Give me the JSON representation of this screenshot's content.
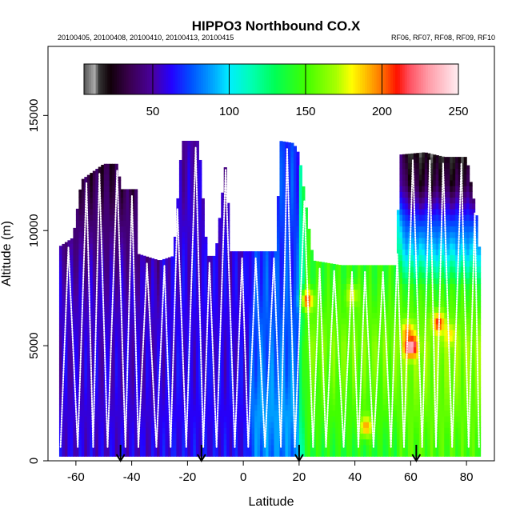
{
  "chart_data": {
    "type": "heatmap",
    "title": "HIPPO3 Northbound CO.X",
    "subtitle_left": "20100405, 20100408, 20100410, 20100413, 20100415",
    "subtitle_right": "RF06, RF07, RF08, RF09, RF10",
    "xlabel": "Latitude",
    "ylabel": "Altitude (m)",
    "xlim": [
      -70,
      90
    ],
    "ylim": [
      0,
      18000
    ],
    "x_ticks": [
      -60,
      -40,
      -20,
      0,
      20,
      40,
      60,
      80
    ],
    "y_ticks": [
      0,
      5000,
      10000,
      15000
    ],
    "colorbar": {
      "range": [
        5,
        250
      ],
      "ticks": [
        50,
        100,
        150,
        200,
        250
      ],
      "stops": [
        {
          "v": 5,
          "c": "#555555"
        },
        {
          "v": 12,
          "c": "#aaaaaa"
        },
        {
          "v": 15,
          "c": "#333333"
        },
        {
          "v": 22,
          "c": "#100008"
        },
        {
          "v": 35,
          "c": "#3a0050"
        },
        {
          "v": 50,
          "c": "#4a00a0"
        },
        {
          "v": 62,
          "c": "#2400ff"
        },
        {
          "v": 75,
          "c": "#0050ff"
        },
        {
          "v": 90,
          "c": "#00aaff"
        },
        {
          "v": 100,
          "c": "#00eeff"
        },
        {
          "v": 115,
          "c": "#00ffb0"
        },
        {
          "v": 130,
          "c": "#00ff55"
        },
        {
          "v": 150,
          "c": "#40ff00"
        },
        {
          "v": 170,
          "c": "#a8ff00"
        },
        {
          "v": 180,
          "c": "#ffff00"
        },
        {
          "v": 190,
          "c": "#ffbb00"
        },
        {
          "v": 200,
          "c": "#ff7000"
        },
        {
          "v": 210,
          "c": "#ff1000"
        },
        {
          "v": 218,
          "c": "#ff5060"
        },
        {
          "v": 230,
          "c": "#ff9aa6"
        },
        {
          "v": 250,
          "c": "#ffeef2"
        }
      ]
    },
    "arrows_latitude": [
      -44,
      -15,
      20,
      62
    ],
    "segments": [
      {
        "name": "RF06",
        "lat_range": [
          -66,
          -30
        ],
        "ceilings": [
          [
            -66,
            9300
          ],
          [
            -61,
            9700
          ],
          [
            -58,
            12200
          ],
          [
            -50,
            12900
          ],
          [
            -45,
            12900
          ],
          [
            -44,
            11800
          ],
          [
            -38,
            11800
          ],
          [
            -38,
            9000
          ],
          [
            -30,
            8700
          ]
        ],
        "value_by_altitude": [
          [
            0,
            58
          ],
          [
            7000,
            55
          ],
          [
            9000,
            48
          ],
          [
            11000,
            38
          ],
          [
            13000,
            30
          ]
        ]
      },
      {
        "name": "RF07",
        "lat_range": [
          -30,
          2
        ],
        "ceilings": [
          [
            -30,
            8700
          ],
          [
            -25,
            8900
          ],
          [
            -22,
            13900
          ],
          [
            -16,
            13900
          ],
          [
            -13,
            8900
          ],
          [
            -10,
            8900
          ],
          [
            -6,
            13300
          ],
          [
            -5,
            9100
          ],
          [
            2,
            9100
          ]
        ],
        "value_by_altitude": [
          [
            0,
            62
          ],
          [
            9000,
            58
          ],
          [
            14000,
            50
          ]
        ]
      },
      {
        "name": "RF08",
        "lat_range": [
          2,
          20
        ],
        "ceilings": [
          [
            2,
            9100
          ],
          [
            12,
            9100
          ],
          [
            13,
            13900
          ],
          [
            18,
            13800
          ],
          [
            20,
            13300
          ]
        ],
        "value_by_altitude": [
          [
            0,
            82
          ],
          [
            2000,
            88
          ],
          [
            5000,
            78
          ],
          [
            9000,
            72
          ],
          [
            14000,
            70
          ]
        ]
      },
      {
        "name": "RF09",
        "lat_range": [
          20,
          55
        ],
        "ceilings": [
          [
            20,
            13300
          ],
          [
            25,
            8700
          ],
          [
            35,
            8500
          ],
          [
            55,
            8500
          ]
        ],
        "value_by_altitude": [
          [
            0,
            140
          ],
          [
            2000,
            150
          ],
          [
            5000,
            160
          ],
          [
            8000,
            145
          ]
        ]
      },
      {
        "name": "RF10",
        "lat_range": [
          55,
          85
        ],
        "ceilings": [
          [
            55,
            8500
          ],
          [
            56,
            13300
          ],
          [
            65,
            13400
          ],
          [
            72,
            13200
          ],
          [
            80,
            13200
          ],
          [
            84,
            10300
          ],
          [
            85,
            8300
          ]
        ],
        "value_by_altitude": [
          [
            0,
            150
          ],
          [
            5000,
            165
          ],
          [
            7500,
            145
          ],
          [
            9000,
            100
          ],
          [
            10500,
            70
          ],
          [
            12000,
            30
          ],
          [
            13500,
            18
          ]
        ]
      }
    ],
    "hotspots": [
      {
        "lat": 60,
        "alt": 5000,
        "value": 248
      },
      {
        "lat": 59,
        "alt": 5600,
        "value": 200
      },
      {
        "lat": 70,
        "alt": 6000,
        "value": 210
      },
      {
        "lat": 23,
        "alt": 7000,
        "value": 205
      },
      {
        "lat": 44,
        "alt": 1500,
        "value": 195
      },
      {
        "lat": 39,
        "alt": 7200,
        "value": 180
      },
      {
        "lat": 74,
        "alt": 5500,
        "value": 185
      }
    ]
  }
}
